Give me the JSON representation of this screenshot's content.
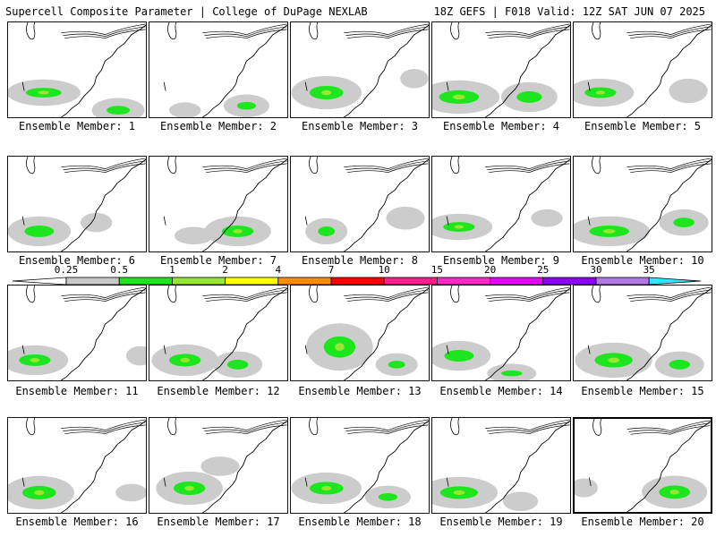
{
  "header": {
    "title_left": "Supercell Composite Parameter | College of DuPage NEXLAB",
    "title_right": "18Z GEFS | F018 Valid: 12Z SAT JUN 07 2025"
  },
  "panels": [
    {
      "label": "Ensemble Member: 1"
    },
    {
      "label": "Ensemble Member: 2"
    },
    {
      "label": "Ensemble Member: 3"
    },
    {
      "label": "Ensemble Member: 4"
    },
    {
      "label": "Ensemble Member: 5"
    },
    {
      "label": "Ensemble Member: 6"
    },
    {
      "label": "Ensemble Member: 7"
    },
    {
      "label": "Ensemble Member: 8"
    },
    {
      "label": "Ensemble Member: 9"
    },
    {
      "label": "Ensemble Member: 10"
    },
    {
      "label": "Ensemble Member: 11"
    },
    {
      "label": "Ensemble Member: 12"
    },
    {
      "label": "Ensemble Member: 13"
    },
    {
      "label": "Ensemble Member: 14"
    },
    {
      "label": "Ensemble Member: 15"
    },
    {
      "label": "Ensemble Member: 16"
    },
    {
      "label": "Ensemble Member: 17"
    },
    {
      "label": "Ensemble Member: 18"
    },
    {
      "label": "Ensemble Member: 19"
    },
    {
      "label": "Ensemble Member: 20",
      "selected": true
    }
  ],
  "colorbar": {
    "ticks": [
      "0.25",
      "0.5",
      "1",
      "2",
      "4",
      "7",
      "10",
      "15",
      "20",
      "25",
      "30",
      "35"
    ],
    "colors": [
      "#c8c8c8",
      "#1ee61e",
      "#96e632",
      "#ffff00",
      "#ff8c00",
      "#ff0000",
      "#ff1e8c",
      "#ff28c8",
      "#e600ff",
      "#8c00ff",
      "#b478e6",
      "#32e6ff"
    ]
  }
}
